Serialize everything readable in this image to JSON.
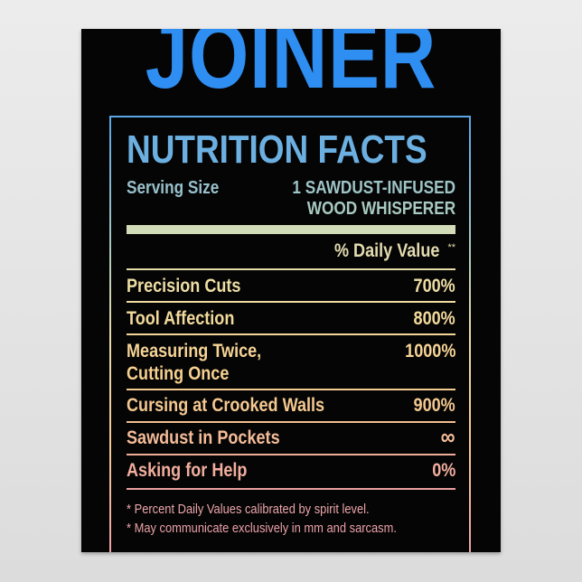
{
  "title": "JOINER",
  "heading": "NUTRITION FACTS",
  "serving": {
    "label": "Serving Size",
    "value_line1": "1 SAWDUST-INFUSED",
    "value_line2": "WOOD WHISPERER"
  },
  "daily_value_header": "% Daily Value",
  "daily_value_mark": "**",
  "rows": [
    {
      "label": "Precision Cuts",
      "value": "700%"
    },
    {
      "label": "Tool Affection",
      "value": "800%"
    },
    {
      "label_line1": "Measuring Twice,",
      "label_line2": "Cutting Once",
      "value": "1000%"
    },
    {
      "label": "Cursing at Crooked Walls",
      "value": "900%"
    },
    {
      "label": "Sawdust in Pockets",
      "value": "∞"
    },
    {
      "label": "Asking for Help",
      "value": "0%"
    }
  ],
  "footnotes": [
    "* Percent Daily Values calibrated by spirit level.",
    "* May communicate exclusively in mm and sarcasm."
  ],
  "colors": {
    "title": "#2f8ef2",
    "gradient_top": "#5aa6e6",
    "gradient_bottom": "#eca0a8",
    "background": "#050505"
  }
}
